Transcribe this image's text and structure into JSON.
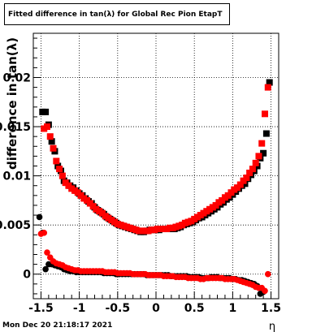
{
  "chart_data": {
    "type": "scatter",
    "title": "Fitted difference in tan(λ) for Global Rec Pion EtapT",
    "xlabel": "η",
    "ylabel": "difference in tan(λ)",
    "xlim": [
      -1.6,
      1.6
    ],
    "ylim": [
      -0.0025,
      0.0245
    ],
    "x_ticks": [
      -1.5,
      -1,
      -0.5,
      0,
      0.5,
      1,
      1.5
    ],
    "x_tick_labels": [
      "-1.5",
      "-1",
      "-0.5",
      "0",
      "0.5",
      "1",
      "1.5"
    ],
    "y_ticks": [
      0,
      0.005,
      0.01,
      0.015,
      0.02
    ],
    "y_tick_labels": [
      "0",
      "0.005",
      "0.01",
      "0.015",
      "0.02"
    ],
    "grid": true,
    "series": [
      {
        "color": "#000000",
        "marker": "square",
        "x": [
          -1.48,
          -1.44,
          -1.4,
          -1.36,
          -1.32,
          -1.28,
          -1.24,
          -1.2,
          -1.16,
          -1.12,
          -1.08,
          -1.04,
          -1.0,
          -0.96,
          -0.92,
          -0.88,
          -0.84,
          -0.8,
          -0.76,
          -0.72,
          -0.68,
          -0.64,
          -0.6,
          -0.56,
          -0.52,
          -0.48,
          -0.44,
          -0.4,
          -0.36,
          -0.32,
          -0.28,
          -0.24,
          -0.2,
          -0.16,
          -0.12,
          -0.08,
          -0.04,
          0.0,
          0.04,
          0.08,
          0.12,
          0.16,
          0.2,
          0.24,
          0.28,
          0.32,
          0.36,
          0.4,
          0.44,
          0.48,
          0.52,
          0.56,
          0.6,
          0.64,
          0.68,
          0.72,
          0.76,
          0.8,
          0.84,
          0.88,
          0.92,
          0.96,
          1.0,
          1.04,
          1.08,
          1.12,
          1.16,
          1.2,
          1.24,
          1.28,
          1.32,
          1.36,
          1.4,
          1.44,
          1.48
        ],
        "y": [
          0.0165,
          0.0165,
          0.0152,
          0.0135,
          0.0125,
          0.011,
          0.0105,
          0.0095,
          0.0093,
          0.009,
          0.0088,
          0.0085,
          0.0082,
          0.008,
          0.0077,
          0.0074,
          0.0072,
          0.0068,
          0.0065,
          0.0063,
          0.0061,
          0.0058,
          0.0056,
          0.0054,
          0.0052,
          0.005,
          0.0049,
          0.0048,
          0.0047,
          0.0046,
          0.0045,
          0.0044,
          0.0043,
          0.0043,
          0.0044,
          0.0045,
          0.0045,
          0.0045,
          0.0045,
          0.0046,
          0.0046,
          0.0046,
          0.0046,
          0.0046,
          0.0047,
          0.0048,
          0.005,
          0.0051,
          0.0052,
          0.0053,
          0.0055,
          0.0057,
          0.0058,
          0.006,
          0.0062,
          0.0064,
          0.0066,
          0.0068,
          0.0071,
          0.0073,
          0.0076,
          0.0078,
          0.0081,
          0.0084,
          0.0087,
          0.009,
          0.0092,
          0.0097,
          0.0101,
          0.0105,
          0.011,
          0.0118,
          0.0123,
          0.0143,
          0.0195
        ]
      },
      {
        "color": "#ff0000",
        "marker": "square",
        "x": [
          -1.46,
          -1.42,
          -1.38,
          -1.34,
          -1.3,
          -1.26,
          -1.22,
          -1.18,
          -1.14,
          -1.1,
          -1.06,
          -1.02,
          -0.98,
          -0.94,
          -0.9,
          -0.86,
          -0.82,
          -0.78,
          -0.74,
          -0.7,
          -0.66,
          -0.62,
          -0.58,
          -0.54,
          -0.5,
          -0.46,
          -0.42,
          -0.38,
          -0.34,
          -0.3,
          -0.26,
          -0.22,
          -0.18,
          -0.14,
          -0.1,
          -0.06,
          -0.02,
          0.02,
          0.06,
          0.1,
          0.14,
          0.18,
          0.22,
          0.26,
          0.3,
          0.34,
          0.38,
          0.42,
          0.46,
          0.5,
          0.54,
          0.58,
          0.62,
          0.66,
          0.7,
          0.74,
          0.78,
          0.82,
          0.86,
          0.9,
          0.94,
          0.98,
          1.02,
          1.06,
          1.1,
          1.14,
          1.18,
          1.22,
          1.26,
          1.3,
          1.34,
          1.38,
          1.42,
          1.46
        ],
        "y": [
          0.0148,
          0.015,
          0.014,
          0.0128,
          0.0115,
          0.0107,
          0.01,
          0.0093,
          0.009,
          0.0087,
          0.0085,
          0.0083,
          0.008,
          0.0077,
          0.0075,
          0.0072,
          0.0069,
          0.0066,
          0.0064,
          0.0062,
          0.0059,
          0.0057,
          0.0055,
          0.0053,
          0.0051,
          0.005,
          0.0049,
          0.0048,
          0.0047,
          0.0046,
          0.0045,
          0.0044,
          0.0044,
          0.0044,
          0.0044,
          0.0045,
          0.0045,
          0.0046,
          0.0046,
          0.0046,
          0.0046,
          0.0047,
          0.0047,
          0.0048,
          0.0049,
          0.005,
          0.0052,
          0.0053,
          0.0054,
          0.0056,
          0.0058,
          0.006,
          0.0062,
          0.0064,
          0.0066,
          0.0068,
          0.007,
          0.0073,
          0.0075,
          0.0078,
          0.008,
          0.0083,
          0.0086,
          0.0088,
          0.0091,
          0.0095,
          0.0098,
          0.0103,
          0.0107,
          0.0113,
          0.012,
          0.0133,
          0.0163,
          0.019
        ]
      },
      {
        "color": "#000000",
        "marker": "circle",
        "x": [
          -1.52,
          -1.48,
          -1.44,
          -1.4,
          -1.36,
          -1.32,
          -1.28,
          -1.24,
          -1.2,
          -1.16,
          -1.12,
          -1.08,
          -1.04,
          -1.0,
          -0.96,
          -0.92,
          -0.88,
          -0.84,
          -0.8,
          -0.76,
          -0.72,
          -0.68,
          -0.64,
          -0.6,
          -0.56,
          -0.52,
          -0.48,
          -0.44,
          -0.4,
          -0.36,
          -0.32,
          -0.28,
          -0.24,
          -0.2,
          -0.16,
          -0.12,
          -0.08,
          -0.04,
          0.0,
          0.04,
          0.08,
          0.12,
          0.16,
          0.2,
          0.24,
          0.28,
          0.32,
          0.36,
          0.4,
          0.44,
          0.48,
          0.52,
          0.56,
          0.6,
          0.64,
          0.68,
          0.72,
          0.76,
          0.8,
          0.84,
          0.88,
          0.92,
          0.96,
          1.0,
          1.04,
          1.08,
          1.12,
          1.16,
          1.2,
          1.24,
          1.28,
          1.32,
          1.36,
          1.4
        ],
        "y": [
          0.0058,
          0.0042,
          0.0005,
          0.001,
          0.001,
          0.0009,
          0.0008,
          0.0007,
          0.0005,
          0.0004,
          0.0003,
          0.0003,
          0.0002,
          0.0002,
          0.0002,
          0.0002,
          0.0002,
          0.0002,
          0.0002,
          0.0002,
          0.0002,
          0.0001,
          0.0001,
          0.0001,
          0.0001,
          0.0,
          0.0,
          0.0,
          0.0,
          0.0,
          0.0,
          0.0,
          0.0,
          0.0,
          0.0,
          -0.0001,
          -0.0001,
          -0.0001,
          -0.0001,
          -0.0001,
          -0.0001,
          -0.0001,
          -0.0001,
          -0.0002,
          -0.0002,
          -0.0002,
          -0.0002,
          -0.0002,
          -0.0002,
          -0.0003,
          -0.0003,
          -0.0003,
          -0.0003,
          -0.0004,
          -0.0004,
          -0.0004,
          -0.0003,
          -0.0003,
          -0.0003,
          -0.0004,
          -0.0004,
          -0.0004,
          -0.0004,
          -0.0005,
          -0.0005,
          -0.0006,
          -0.0006,
          -0.0007,
          -0.0008,
          -0.0009,
          -0.001,
          -0.0012,
          -0.002,
          -0.0018
        ]
      },
      {
        "color": "#ff0000",
        "marker": "circle",
        "x": [
          -1.5,
          -1.46,
          -1.42,
          -1.38,
          -1.34,
          -1.3,
          -1.26,
          -1.22,
          -1.18,
          -1.14,
          -1.1,
          -1.06,
          -1.02,
          -0.98,
          -0.94,
          -0.9,
          -0.86,
          -0.82,
          -0.78,
          -0.74,
          -0.7,
          -0.66,
          -0.62,
          -0.58,
          -0.54,
          -0.5,
          -0.46,
          -0.42,
          -0.38,
          -0.34,
          -0.3,
          -0.26,
          -0.22,
          -0.18,
          -0.14,
          -0.1,
          -0.06,
          -0.02,
          0.02,
          0.06,
          0.1,
          0.14,
          0.18,
          0.22,
          0.26,
          0.3,
          0.34,
          0.38,
          0.42,
          0.46,
          0.5,
          0.54,
          0.58,
          0.62,
          0.66,
          0.7,
          0.74,
          0.78,
          0.82,
          0.86,
          0.9,
          0.94,
          0.98,
          1.02,
          1.06,
          1.1,
          1.14,
          1.18,
          1.22,
          1.26,
          1.3,
          1.34,
          1.38,
          1.42,
          1.46
        ],
        "y": [
          0.0041,
          0.0042,
          0.0022,
          0.0017,
          0.0013,
          0.0011,
          0.001,
          0.0009,
          0.0007,
          0.0006,
          0.0005,
          0.0004,
          0.0004,
          0.0003,
          0.0003,
          0.0003,
          0.0003,
          0.0003,
          0.0003,
          0.0003,
          0.0003,
          0.0002,
          0.0002,
          0.0002,
          0.0002,
          0.0001,
          0.0001,
          0.0001,
          0.0001,
          0.0001,
          0.0,
          0.0,
          0.0,
          0.0,
          0.0,
          -0.0001,
          -0.0001,
          -0.0001,
          -0.0001,
          -0.0001,
          -0.0002,
          -0.0002,
          -0.0002,
          -0.0002,
          -0.0003,
          -0.0003,
          -0.0003,
          -0.0003,
          -0.0004,
          -0.0004,
          -0.0004,
          -0.0004,
          -0.0005,
          -0.0005,
          -0.0004,
          -0.0004,
          -0.0004,
          -0.0004,
          -0.0004,
          -0.0004,
          -0.0005,
          -0.0005,
          -0.0005,
          -0.0005,
          -0.0006,
          -0.0007,
          -0.0008,
          -0.0009,
          -0.001,
          -0.0011,
          -0.0013,
          -0.0014,
          -0.0014,
          -0.0017,
          0.0
        ]
      }
    ]
  },
  "footer": {
    "timestamp": "Mon Dec 20 21:18:17 2021"
  }
}
